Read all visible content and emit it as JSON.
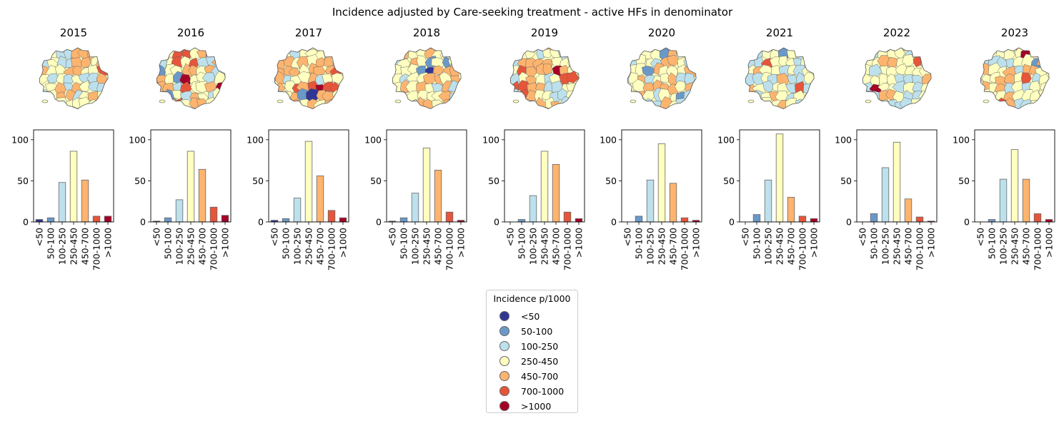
{
  "figure_title": "Incidence adjusted by Care-seeking treatment - active HFs in denominator",
  "legend": {
    "title": "Incidence p/1000",
    "items": [
      {
        "label": "<50",
        "color": "#313695"
      },
      {
        "label": "50-100",
        "color": "#6a98c9"
      },
      {
        "label": "100-250",
        "color": "#bde1ec"
      },
      {
        "label": "250-450",
        "color": "#ffffc0"
      },
      {
        "label": "450-700",
        "color": "#fdb46e"
      },
      {
        "label": "700-1000",
        "color": "#e6553a"
      },
      {
        "label": ">1000",
        "color": "#a50026"
      }
    ]
  },
  "chart_data": [
    {
      "type": "bar",
      "title": "2015",
      "categories": [
        "<50",
        "50-100",
        "100-250",
        "250-450",
        "450-700",
        "700-1000",
        ">1000"
      ],
      "values": [
        3,
        5,
        48,
        86,
        51,
        7,
        7
      ],
      "ylim": [
        0,
        112
      ],
      "yticks": [
        0,
        50,
        100
      ]
    },
    {
      "type": "bar",
      "title": "2016",
      "categories": [
        "<50",
        "50-100",
        "100-250",
        "250-450",
        "450-700",
        "700-1000",
        ">1000"
      ],
      "values": [
        1,
        5,
        27,
        86,
        64,
        18,
        8
      ],
      "ylim": [
        0,
        112
      ],
      "yticks": [
        0,
        50,
        100
      ]
    },
    {
      "type": "bar",
      "title": "2017",
      "categories": [
        "<50",
        "50-100",
        "100-250",
        "250-450",
        "450-700",
        "700-1000",
        ">1000"
      ],
      "values": [
        2,
        4,
        29,
        98,
        56,
        14,
        5
      ],
      "ylim": [
        0,
        112
      ],
      "yticks": [
        0,
        50,
        100
      ]
    },
    {
      "type": "bar",
      "title": "2018",
      "categories": [
        "<50",
        "50-100",
        "100-250",
        "250-450",
        "450-700",
        "700-1000",
        ">1000"
      ],
      "values": [
        1,
        5,
        35,
        90,
        63,
        12,
        2
      ],
      "ylim": [
        0,
        112
      ],
      "yticks": [
        0,
        50,
        100
      ]
    },
    {
      "type": "bar",
      "title": "2019",
      "categories": [
        "<50",
        "50-100",
        "100-250",
        "250-450",
        "450-700",
        "700-1000",
        ">1000"
      ],
      "values": [
        0,
        3,
        32,
        86,
        70,
        12,
        4
      ],
      "ylim": [
        0,
        112
      ],
      "yticks": [
        0,
        50,
        100
      ]
    },
    {
      "type": "bar",
      "title": "2020",
      "categories": [
        "<50",
        "50-100",
        "100-250",
        "250-450",
        "450-700",
        "700-1000",
        ">1000"
      ],
      "values": [
        0,
        7,
        51,
        95,
        47,
        5,
        2
      ],
      "ylim": [
        0,
        112
      ],
      "yticks": [
        0,
        50,
        100
      ]
    },
    {
      "type": "bar",
      "title": "2021",
      "categories": [
        "<50",
        "50-100",
        "100-250",
        "250-450",
        "450-700",
        "700-1000",
        ">1000"
      ],
      "values": [
        0,
        9,
        51,
        107,
        30,
        7,
        4
      ],
      "ylim": [
        0,
        112
      ],
      "yticks": [
        0,
        50,
        100
      ]
    },
    {
      "type": "bar",
      "title": "2022",
      "categories": [
        "<50",
        "50-100",
        "100-250",
        "250-450",
        "450-700",
        "700-1000",
        ">1000"
      ],
      "values": [
        0,
        10,
        66,
        97,
        28,
        6,
        1
      ],
      "ylim": [
        0,
        112
      ],
      "yticks": [
        0,
        50,
        100
      ]
    },
    {
      "type": "bar",
      "title": "2023",
      "categories": [
        "<50",
        "50-100",
        "100-250",
        "250-450",
        "450-700",
        "700-1000",
        ">1000"
      ],
      "values": [
        0,
        3,
        52,
        88,
        52,
        10,
        3
      ],
      "ylim": [
        0,
        112
      ],
      "yticks": [
        0,
        50,
        100
      ]
    }
  ]
}
